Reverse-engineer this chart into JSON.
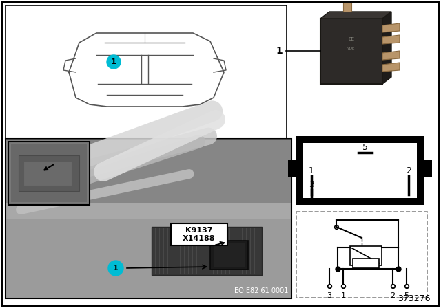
{
  "doc_number": "373276",
  "eo_code": "EO E82 61 0001",
  "k_code": "K9137",
  "x_code": "X14188",
  "bg_color": "#ffffff",
  "border_color": "#000000",
  "car_outline_color": "#555555",
  "callout_color": "#00bcd4",
  "relay_box_fill": "#000000",
  "relay_box_inner": "#ffffff",
  "dashed_box_color": "#777777",
  "label_bg": "#ffffff",
  "label_border": "#000000",
  "photo_gray": "#b0b0b0",
  "photo_dark": "#606060",
  "photo_darker": "#404040",
  "inset_gray": "#888888",
  "pipe_light": "#d0d0d0",
  "pipe_mid": "#a0a0a0"
}
